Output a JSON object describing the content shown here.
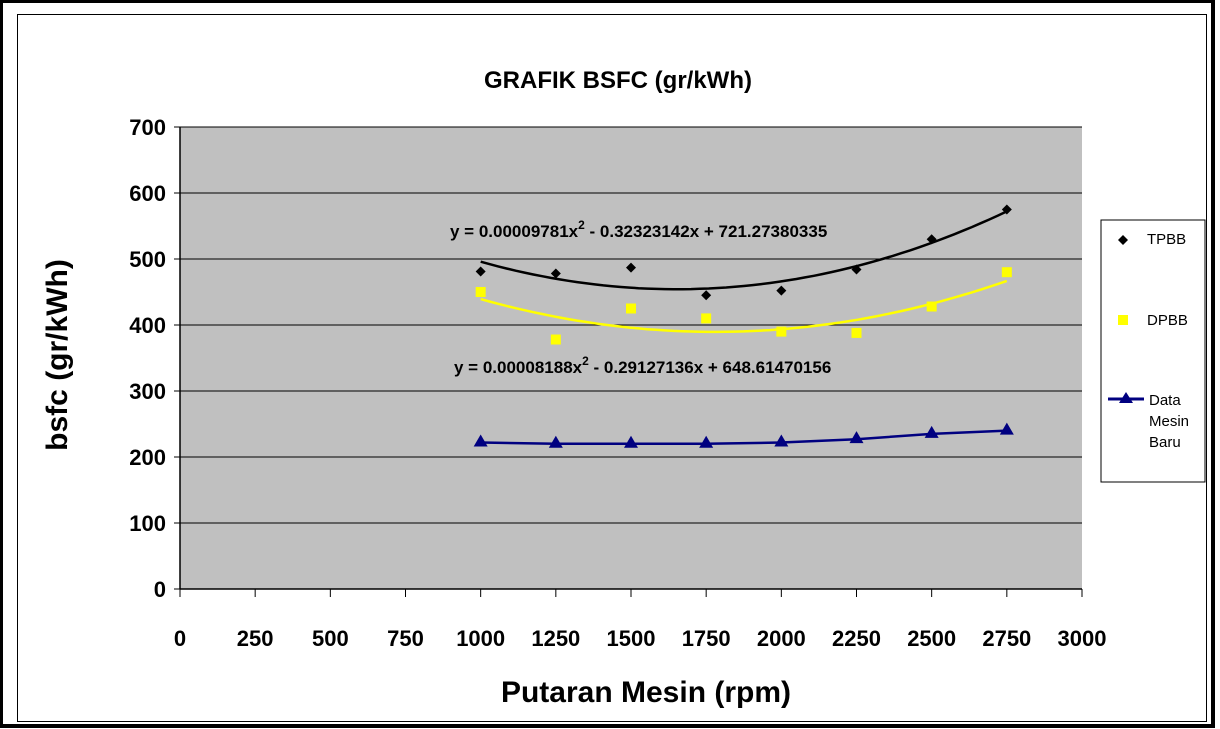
{
  "chart_data": {
    "type": "scatter",
    "title": "GRAFIK BSFC (gr/kWh)",
    "xlabel": "Putaran Mesin (rpm)",
    "ylabel": "bsfc (gr/kWh)",
    "xlim": [
      0,
      3000
    ],
    "ylim": [
      0,
      700
    ],
    "x_ticks": [
      "0",
      "250",
      "500",
      "750",
      "1000",
      "1250",
      "1500",
      "1750",
      "2000",
      "2250",
      "2500",
      "2750",
      "3000"
    ],
    "y_ticks": [
      "0",
      "100",
      "200",
      "300",
      "400",
      "500",
      "600",
      "700"
    ],
    "grid": "horizontal",
    "legend_position": "right",
    "plot_background": "#c0c0c0",
    "series": [
      {
        "name": "TPBB",
        "color": "#000000",
        "marker": "diamond",
        "x": [
          1000,
          1250,
          1500,
          1750,
          2000,
          2250,
          2500,
          2750
        ],
        "y": [
          481,
          478,
          487,
          445,
          452,
          484,
          530,
          575
        ],
        "trendline": {
          "type": "poly2",
          "a": 9.781e-05,
          "b": -0.32323142,
          "c": 721.27380335,
          "from": 1000,
          "to": 2750
        }
      },
      {
        "name": "DPBB",
        "color": "#ffff00",
        "marker": "square",
        "x": [
          1000,
          1250,
          1500,
          1750,
          2000,
          2250,
          2500,
          2750
        ],
        "y": [
          450,
          378,
          425,
          410,
          390,
          388,
          428,
          480
        ],
        "trendline": {
          "type": "poly2",
          "a": 8.188e-05,
          "b": -0.29127136,
          "c": 648.61470156,
          "from": 1000,
          "to": 2750
        }
      },
      {
        "name": "Data Mesin Baru",
        "legend_lines": [
          "Data",
          "Mesin",
          "Baru"
        ],
        "color": "#000080",
        "marker": "triangle",
        "line": true,
        "x": [
          1000,
          1250,
          1500,
          1750,
          2000,
          2250,
          2500,
          2750
        ],
        "y": [
          222,
          220,
          220,
          220,
          222,
          227,
          235,
          240
        ]
      }
    ],
    "annotations": [
      {
        "id": "tpbb-eq",
        "base": "y = 0.00009781x",
        "sup": "2",
        "rest": " - 0.32323142x + 721.27380335"
      },
      {
        "id": "dpbb-eq",
        "base": "y = 0.00008188x",
        "sup": "2",
        "rest": " - 0.29127136x + 648.61470156"
      }
    ]
  }
}
